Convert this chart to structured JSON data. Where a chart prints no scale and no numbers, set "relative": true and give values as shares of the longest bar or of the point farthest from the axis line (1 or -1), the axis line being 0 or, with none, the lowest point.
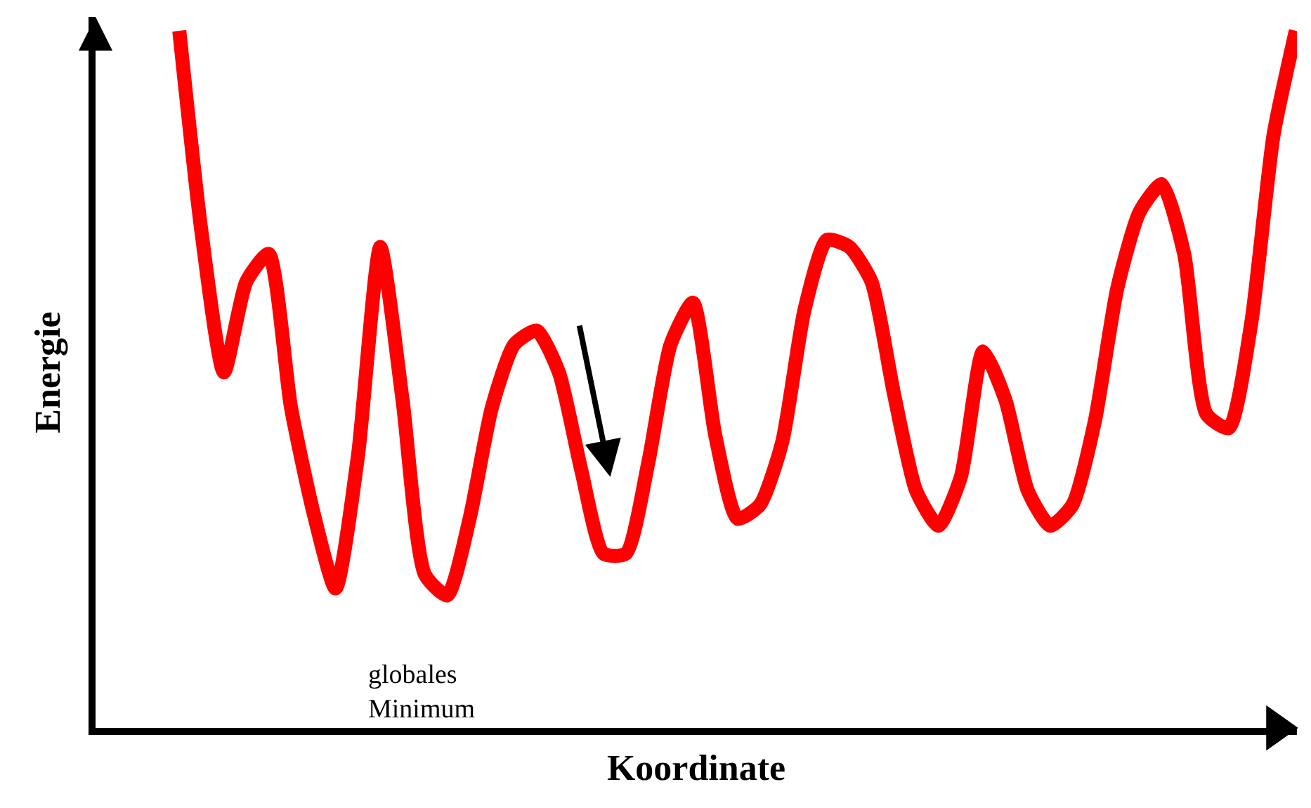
{
  "chart_data": {
    "type": "line",
    "relative": true,
    "xlabel": "Koordinate",
    "ylabel": "Energie",
    "categories": [
      null,
      null,
      null,
      null,
      null,
      null,
      null,
      null,
      null,
      null,
      null,
      null,
      null,
      null,
      null,
      null,
      null,
      null,
      null,
      null,
      null,
      null,
      null,
      null,
      null,
      null,
      null,
      null,
      null,
      null,
      null,
      null,
      null,
      null,
      null,
      null,
      null,
      null,
      null,
      null,
      null,
      null,
      null,
      null,
      null,
      null,
      null,
      null,
      null,
      null,
      null
    ],
    "series": [
      {
        "color": "#ff0000",
        "values": [
          1.0,
          0.71,
          0.51,
          0.64,
          0.68,
          0.46,
          0.31,
          0.2,
          0.39,
          0.69,
          0.47,
          0.22,
          0.19,
          0.3,
          0.46,
          0.55,
          0.57,
          0.51,
          0.37,
          0.25,
          0.25,
          0.38,
          0.55,
          0.61,
          0.42,
          0.3,
          0.32,
          0.41,
          0.6,
          0.7,
          0.69,
          0.64,
          0.48,
          0.34,
          0.29,
          0.36,
          0.54,
          0.47,
          0.34,
          0.29,
          0.32,
          0.44,
          0.63,
          0.74,
          0.78,
          0.68,
          0.45,
          0.43,
          0.58,
          0.85,
          1.0
        ]
      }
    ],
    "annotations": [
      "globales\nMinimum"
    ],
    "marker": "none",
    "line_style": "solid"
  }
}
